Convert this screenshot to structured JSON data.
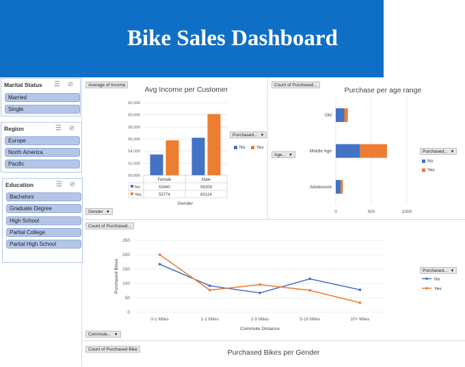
{
  "title": "Bike Sales Dashboard",
  "colors": {
    "banner": "#0f6fc6",
    "no": "#4472c4",
    "yes": "#ed7d31",
    "slicer_item": "#b4c6e7"
  },
  "slicers": {
    "marital_status": {
      "title": "Marital Status",
      "items": [
        "Married",
        "Single"
      ]
    },
    "region": {
      "title": "Region",
      "items": [
        "Europe",
        "North America",
        "Pacific"
      ]
    },
    "education": {
      "title": "Education",
      "items": [
        "Bachelors",
        "Graduate Degree",
        "High School",
        "Partial College",
        "Partial High School"
      ]
    }
  },
  "income_chart": {
    "field_value": "Average of Income",
    "field_axis": "Gender",
    "field_legend": "Purchased...",
    "table_row_no": "No",
    "table_row_yes": "Yes",
    "no_values_text": [
      "53440",
      "56208"
    ],
    "yes_values_text": [
      "55774",
      "60124"
    ]
  },
  "age_chart": {
    "field_value": "Count of Purchased...",
    "field_axis": "Age...",
    "field_legend": "Purchased..."
  },
  "commute_chart": {
    "field_value": "Count of Purchased...",
    "field_axis": "Commute...",
    "field_legend": "Purchased..."
  },
  "gender_chart": {
    "field_value": "Count of Purchased Bike",
    "title": "Purchased Bikes per Gender"
  },
  "chart_data": [
    {
      "type": "bar",
      "title": "Avg Income per Customer",
      "xlabel": "Gender",
      "categories": [
        "Female",
        "Male"
      ],
      "series": [
        {
          "name": "No",
          "values": [
            53440,
            56208
          ]
        },
        {
          "name": "Yes",
          "values": [
            55774,
            60124
          ]
        }
      ],
      "ylim": [
        50000,
        62000
      ],
      "yticks": [
        "50,000",
        "52,000",
        "54,000",
        "56,000",
        "58,000",
        "60,000",
        "62,000"
      ],
      "grid": true,
      "legend": "right"
    },
    {
      "type": "bar",
      "orientation": "horizontal-stacked",
      "title": "Purchase per age range",
      "categories": [
        "Old",
        "Middle Age",
        "Adolescent"
      ],
      "series": [
        {
          "name": "No",
          "values": [
            120,
            340,
            70
          ]
        },
        {
          "name": "Yes",
          "values": [
            50,
            380,
            30
          ]
        }
      ],
      "xlim": [
        0,
        1000
      ],
      "xticks": [
        "0",
        "500",
        "1000"
      ],
      "grid": true,
      "legend": "right"
    },
    {
      "type": "line",
      "title": "",
      "xlabel": "Commute Distance",
      "ylabel": "Purchased Bikes",
      "categories": [
        "0-1 Miles",
        "1-2 Miles",
        "2-5 Miles",
        "5-10 Miles",
        "10+ Miles"
      ],
      "series": [
        {
          "name": "No",
          "values": [
            167,
            92,
            67,
            116,
            78
          ]
        },
        {
          "name": "Yes",
          "values": [
            200,
            77,
            96,
            76,
            33
          ]
        }
      ],
      "ylim": [
        0,
        250
      ],
      "yticks": [
        "0",
        "50",
        "100",
        "150",
        "200",
        "250"
      ],
      "grid": true,
      "legend": "right"
    }
  ]
}
